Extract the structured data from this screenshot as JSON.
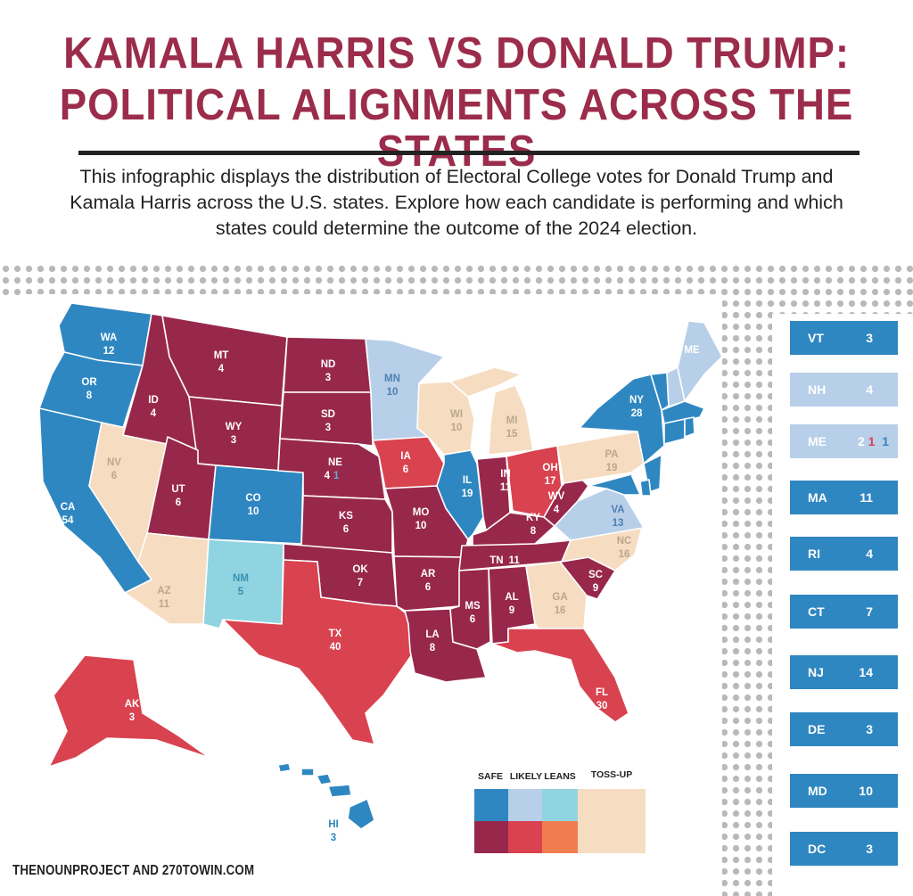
{
  "title_line1": "KAMALA HARRIS VS DONALD TRUMP:",
  "title_line2": "POLITICAL ALIGNMENTS ACROSS THE STATES",
  "subtitle": "This infographic displays the distribution of Electoral College votes for Donald Trump and Kamala Harris across the U.S. states. Explore how each candidate is performing and which states could determine the outcome of the 2024 election.",
  "credit": "THENOUNPROJECT AND 270TOWIN.COM",
  "colors": {
    "dem_safe": "#2f87c1",
    "dem_likely": "#b7cfe9",
    "dem_leans": "#8fd4e0",
    "rep_safe": "#98284b",
    "rep_likely": "#d9424f",
    "rep_leans": "#f07d50",
    "tossup": "#f6dcc1"
  },
  "legend": {
    "safe": "SAFE",
    "likely": "LIKELY",
    "leans": "LEANS",
    "tossup": "TOSS-UP"
  },
  "states": [
    {
      "ab": "WA",
      "ev": "12",
      "cat": "dem_safe"
    },
    {
      "ab": "OR",
      "ev": "8",
      "cat": "dem_safe"
    },
    {
      "ab": "CA",
      "ev": "54",
      "cat": "dem_safe"
    },
    {
      "ab": "NV",
      "ev": "6",
      "cat": "tossup"
    },
    {
      "ab": "ID",
      "ev": "4",
      "cat": "rep_safe"
    },
    {
      "ab": "MT",
      "ev": "4",
      "cat": "rep_safe"
    },
    {
      "ab": "WY",
      "ev": "3",
      "cat": "rep_safe"
    },
    {
      "ab": "UT",
      "ev": "6",
      "cat": "rep_safe"
    },
    {
      "ab": "AZ",
      "ev": "11",
      "cat": "tossup"
    },
    {
      "ab": "CO",
      "ev": "10",
      "cat": "dem_safe"
    },
    {
      "ab": "NM",
      "ev": "5",
      "cat": "dem_leans"
    },
    {
      "ab": "ND",
      "ev": "3",
      "cat": "rep_safe"
    },
    {
      "ab": "SD",
      "ev": "3",
      "cat": "rep_safe"
    },
    {
      "ab": "NE",
      "ev": "4",
      "ev2": "1",
      "cat": "rep_safe"
    },
    {
      "ab": "KS",
      "ev": "6",
      "cat": "rep_safe"
    },
    {
      "ab": "OK",
      "ev": "7",
      "cat": "rep_safe"
    },
    {
      "ab": "TX",
      "ev": "40",
      "cat": "rep_likely"
    },
    {
      "ab": "MN",
      "ev": "10",
      "cat": "dem_likely"
    },
    {
      "ab": "IA",
      "ev": "6",
      "cat": "rep_likely"
    },
    {
      "ab": "MO",
      "ev": "10",
      "cat": "rep_safe"
    },
    {
      "ab": "AR",
      "ev": "6",
      "cat": "rep_safe"
    },
    {
      "ab": "LA",
      "ev": "8",
      "cat": "rep_safe"
    },
    {
      "ab": "WI",
      "ev": "10",
      "cat": "tossup"
    },
    {
      "ab": "IL",
      "ev": "19",
      "cat": "dem_safe"
    },
    {
      "ab": "MI",
      "ev": "15",
      "cat": "tossup"
    },
    {
      "ab": "IN",
      "ev": "11",
      "cat": "rep_safe"
    },
    {
      "ab": "OH",
      "ev": "17",
      "cat": "rep_likely"
    },
    {
      "ab": "KY",
      "ev": "8",
      "cat": "rep_safe"
    },
    {
      "ab": "TN",
      "ev": "11",
      "cat": "rep_safe"
    },
    {
      "ab": "MS",
      "ev": "6",
      "cat": "rep_safe"
    },
    {
      "ab": "AL",
      "ev": "9",
      "cat": "rep_safe"
    },
    {
      "ab": "GA",
      "ev": "16",
      "cat": "tossup"
    },
    {
      "ab": "FL",
      "ev": "30",
      "cat": "rep_likely"
    },
    {
      "ab": "SC",
      "ev": "9",
      "cat": "rep_safe"
    },
    {
      "ab": "NC",
      "ev": "16",
      "cat": "tossup"
    },
    {
      "ab": "VA",
      "ev": "13",
      "cat": "dem_likely"
    },
    {
      "ab": "WV",
      "ev": "4",
      "cat": "rep_safe"
    },
    {
      "ab": "PA",
      "ev": "19",
      "cat": "tossup"
    },
    {
      "ab": "NY",
      "ev": "28",
      "cat": "dem_safe"
    },
    {
      "ab": "ME",
      "cat": "dem_likely"
    },
    {
      "ab": "AK",
      "ev": "3",
      "cat": "rep_likely"
    },
    {
      "ab": "HI",
      "ev": "3",
      "cat": "dem_safe"
    }
  ],
  "small_states": [
    {
      "ab": "VT",
      "ev": "3",
      "cat": "dem_safe"
    },
    {
      "ab": "NH",
      "ev": "4",
      "cat": "dem_likely"
    },
    {
      "ab": "ME",
      "ev": "2",
      "ev_rep": "1",
      "ev_dem": "1",
      "cat": "dem_likely"
    },
    {
      "ab": "MA",
      "ev": "11",
      "cat": "dem_safe"
    },
    {
      "ab": "RI",
      "ev": "4",
      "cat": "dem_safe"
    },
    {
      "ab": "CT",
      "ev": "7",
      "cat": "dem_safe"
    },
    {
      "ab": "NJ",
      "ev": "14",
      "cat": "dem_safe"
    },
    {
      "ab": "DE",
      "ev": "3",
      "cat": "dem_safe"
    },
    {
      "ab": "MD",
      "ev": "10",
      "cat": "dem_safe"
    },
    {
      "ab": "DC",
      "ev": "3",
      "cat": "dem_safe"
    }
  ]
}
